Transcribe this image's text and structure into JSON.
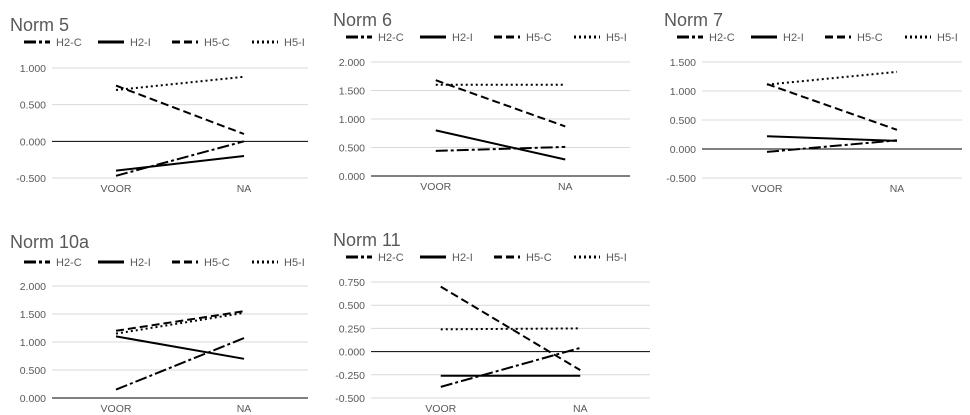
{
  "series_legend": [
    {
      "name": "H2-C",
      "dash": "12 3 3 3"
    },
    {
      "name": "H2-I",
      "dash": ""
    },
    {
      "name": "H5-C",
      "dash": "8 4"
    },
    {
      "name": "H5-I",
      "dash": "2 3"
    }
  ],
  "chart_data": [
    {
      "type": "line",
      "title": "Norm 5",
      "categories": [
        "VOOR",
        "NA"
      ],
      "yticks": [
        "1.000",
        "0.500",
        "0.000",
        "-0.500"
      ],
      "ylim": [
        -0.5,
        1.0
      ],
      "grid": true,
      "legend": "top",
      "series": [
        {
          "name": "H2-C",
          "values": [
            -0.47,
            0.0
          ]
        },
        {
          "name": "H2-I",
          "values": [
            -0.4,
            -0.2
          ]
        },
        {
          "name": "H5-C",
          "values": [
            0.76,
            0.1
          ]
        },
        {
          "name": "H5-I",
          "values": [
            0.7,
            0.88
          ]
        }
      ]
    },
    {
      "type": "line",
      "title": "Norm 6",
      "categories": [
        "VOOR",
        "NA"
      ],
      "yticks": [
        "2.000",
        "1.500",
        "1.000",
        "0.500",
        "0.000"
      ],
      "ylim": [
        0.0,
        2.0
      ],
      "grid": true,
      "legend": "top",
      "series": [
        {
          "name": "H2-C",
          "values": [
            0.44,
            0.51
          ]
        },
        {
          "name": "H2-I",
          "values": [
            0.8,
            0.29
          ]
        },
        {
          "name": "H5-C",
          "values": [
            1.68,
            0.87
          ]
        },
        {
          "name": "H5-I",
          "values": [
            1.6,
            1.6
          ]
        }
      ]
    },
    {
      "type": "line",
      "title": "Norm 7",
      "categories": [
        "VOOR",
        "NA"
      ],
      "yticks": [
        "1.500",
        "1.000",
        "0.500",
        "0.000",
        "-0.500"
      ],
      "ylim": [
        -0.5,
        1.5
      ],
      "grid": true,
      "legend": "top",
      "series": [
        {
          "name": "H2-C",
          "values": [
            -0.05,
            0.15
          ]
        },
        {
          "name": "H2-I",
          "values": [
            0.22,
            0.14
          ]
        },
        {
          "name": "H5-C",
          "values": [
            1.12,
            0.33
          ]
        },
        {
          "name": "H5-I",
          "values": [
            1.11,
            1.33
          ]
        }
      ]
    },
    {
      "type": "line",
      "title": "Norm 10a",
      "categories": [
        "VOOR",
        "NA"
      ],
      "yticks": [
        "2.000",
        "1.500",
        "1.000",
        "0.500",
        "0.000"
      ],
      "ylim": [
        0.0,
        2.0
      ],
      "grid": true,
      "legend": "top",
      "series": [
        {
          "name": "H2-C",
          "values": [
            0.15,
            1.07
          ]
        },
        {
          "name": "H2-I",
          "values": [
            1.1,
            0.7
          ]
        },
        {
          "name": "H5-C",
          "values": [
            1.2,
            1.55
          ]
        },
        {
          "name": "H5-I",
          "values": [
            1.15,
            1.52
          ]
        }
      ]
    },
    {
      "type": "line",
      "title": "Norm 11",
      "categories": [
        "VOOR",
        "NA"
      ],
      "yticks": [
        "0.750",
        "0.500",
        "0.250",
        "0.000",
        "-0.250",
        "-0.500"
      ],
      "ylim": [
        -0.5,
        0.75
      ],
      "grid": true,
      "legend": "top",
      "series": [
        {
          "name": "H2-C",
          "values": [
            -0.38,
            0.04
          ]
        },
        {
          "name": "H2-I",
          "values": [
            -0.26,
            -0.26
          ]
        },
        {
          "name": "H5-C",
          "values": [
            0.7,
            -0.2
          ]
        },
        {
          "name": "H5-I",
          "values": [
            0.24,
            0.25
          ]
        }
      ]
    }
  ]
}
